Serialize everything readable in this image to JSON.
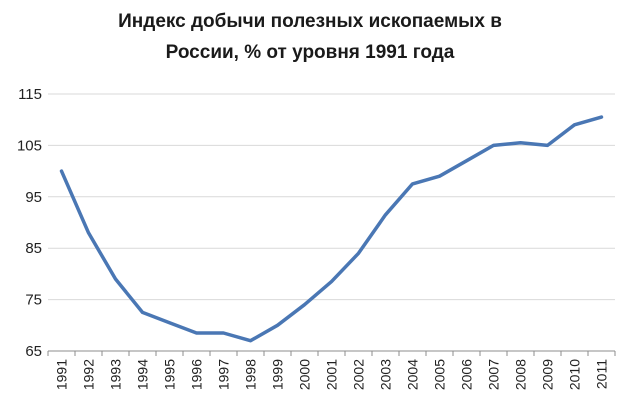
{
  "chart_data": {
    "type": "line",
    "title_lines": [
      "Индекс добычи полезных ископаемых в",
      "России, % от уровня 1991 года"
    ],
    "xlabel": "",
    "ylabel": "",
    "categories": [
      "1991",
      "1992",
      "1993",
      "1994",
      "1995",
      "1996",
      "1997",
      "1998",
      "1999",
      "2000",
      "2001",
      "2002",
      "2003",
      "2004",
      "2005",
      "2006",
      "2007",
      "2008",
      "2009",
      "2010",
      "2011"
    ],
    "series": [
      {
        "values": [
          100,
          88,
          79,
          72.5,
          70.5,
          68.5,
          68.5,
          67,
          70,
          74,
          78.5,
          84,
          91.5,
          97.5,
          99,
          102,
          105,
          105.5,
          105,
          109,
          110.5
        ],
        "color": "#4a77b4"
      }
    ],
    "ylim": [
      65,
      115
    ],
    "yticks": [
      65,
      75,
      85,
      95,
      105,
      115
    ],
    "ytick_labels": [
      "65",
      "75",
      "85",
      "95",
      "105",
      "115"
    ],
    "grid": true,
    "gridline_color": "#d9d9d9",
    "legend": "none"
  }
}
